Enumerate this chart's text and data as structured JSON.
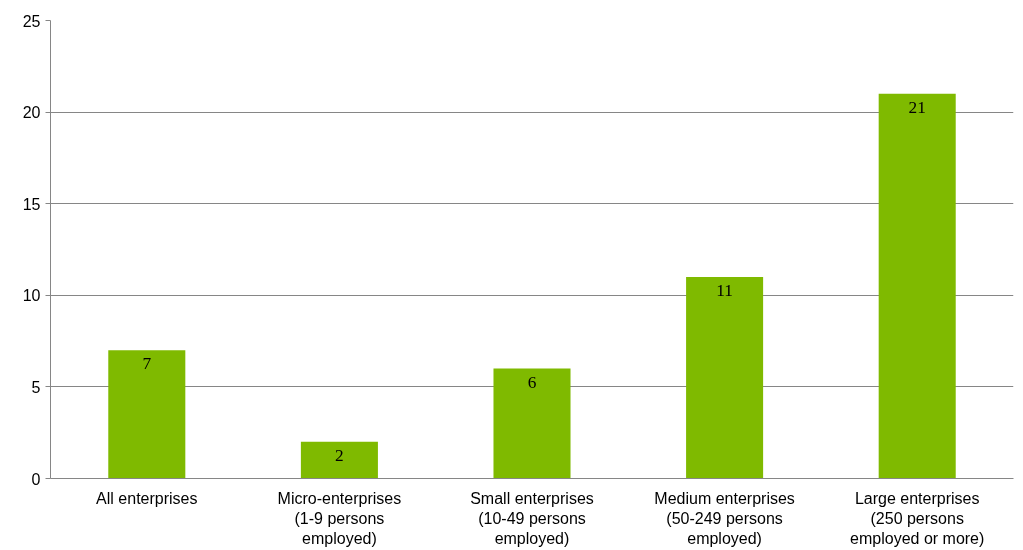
{
  "chart_data": {
    "type": "bar",
    "categories": [
      "All enterprises",
      "Micro-enterprises (1-9 persons employed)",
      "Small enterprises (10-49 persons employed)",
      "Medium enterprises (50-249 persons employed)",
      "Large enterprises (250 persons employed or more)"
    ],
    "values": [
      7,
      2,
      6,
      11,
      21
    ],
    "color": "#7fba00",
    "ylim": [
      0,
      25
    ],
    "yticks": [
      0,
      5,
      10,
      15,
      20,
      25
    ],
    "grid": "y",
    "data_labels": true
  }
}
